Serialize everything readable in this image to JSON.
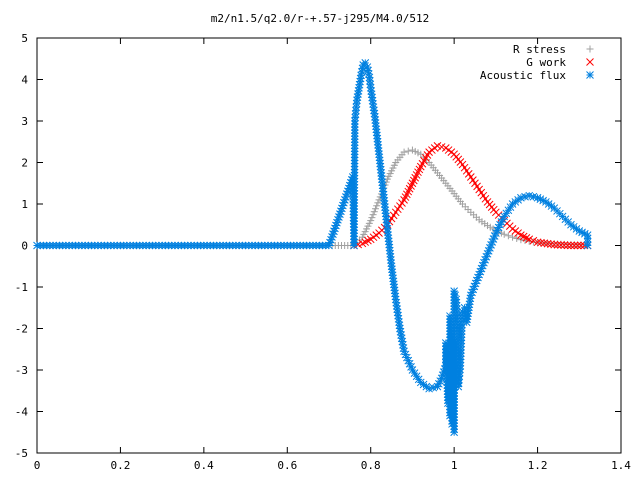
{
  "chart_data": {
    "type": "scatter",
    "title": "m2/n1.5/q2.0/r-+.57-j295/M4.0/512",
    "xlabel": "",
    "ylabel": "",
    "xlim": [
      0,
      1.4
    ],
    "ylim": [
      -5,
      5
    ],
    "xticks": [
      "0",
      "0.2",
      "0.4",
      "0.6",
      "0.8",
      "1",
      "1.2",
      "1.4"
    ],
    "yticks": [
      "-5",
      "-4",
      "-3",
      "-2",
      "-1",
      "0",
      "1",
      "2",
      "3",
      "4",
      "5"
    ],
    "grid": false,
    "legend_position": "top-right",
    "series": [
      {
        "name": "R stress",
        "marker": "plus",
        "color": "#a0a0a0",
        "points": [
          [
            0,
            0
          ],
          [
            0.1,
            0
          ],
          [
            0.2,
            0
          ],
          [
            0.3,
            0
          ],
          [
            0.4,
            0
          ],
          [
            0.5,
            0
          ],
          [
            0.6,
            0
          ],
          [
            0.7,
            0
          ],
          [
            0.76,
            0
          ],
          [
            0.78,
            0.2
          ],
          [
            0.8,
            0.6
          ],
          [
            0.82,
            1.1
          ],
          [
            0.84,
            1.6
          ],
          [
            0.86,
            2.0
          ],
          [
            0.88,
            2.25
          ],
          [
            0.9,
            2.3
          ],
          [
            0.92,
            2.2
          ],
          [
            0.94,
            2.0
          ],
          [
            0.96,
            1.75
          ],
          [
            0.98,
            1.5
          ],
          [
            1.0,
            1.25
          ],
          [
            1.02,
            1.0
          ],
          [
            1.04,
            0.8
          ],
          [
            1.06,
            0.62
          ],
          [
            1.08,
            0.48
          ],
          [
            1.1,
            0.36
          ],
          [
            1.12,
            0.27
          ],
          [
            1.14,
            0.2
          ],
          [
            1.16,
            0.14
          ],
          [
            1.18,
            0.1
          ],
          [
            1.2,
            0.07
          ],
          [
            1.24,
            0.04
          ],
          [
            1.28,
            0.02
          ],
          [
            1.32,
            0.01
          ]
        ]
      },
      {
        "name": "G work",
        "marker": "cross",
        "color": "#ff0000",
        "points": [
          [
            0.76,
            0
          ],
          [
            0.78,
            0.05
          ],
          [
            0.8,
            0.15
          ],
          [
            0.82,
            0.3
          ],
          [
            0.84,
            0.5
          ],
          [
            0.86,
            0.8
          ],
          [
            0.88,
            1.1
          ],
          [
            0.9,
            1.5
          ],
          [
            0.92,
            1.9
          ],
          [
            0.94,
            2.25
          ],
          [
            0.96,
            2.4
          ],
          [
            0.98,
            2.35
          ],
          [
            1.0,
            2.2
          ],
          [
            1.02,
            1.95
          ],
          [
            1.04,
            1.65
          ],
          [
            1.06,
            1.35
          ],
          [
            1.08,
            1.05
          ],
          [
            1.1,
            0.8
          ],
          [
            1.12,
            0.6
          ],
          [
            1.14,
            0.4
          ],
          [
            1.16,
            0.25
          ],
          [
            1.18,
            0.15
          ],
          [
            1.2,
            0.08
          ],
          [
            1.24,
            0.02
          ],
          [
            1.28,
            0
          ],
          [
            1.32,
            0
          ]
        ]
      },
      {
        "name": "Acoustic flux",
        "marker": "star",
        "color": "#0080e0",
        "points": [
          [
            0,
            0
          ],
          [
            0.1,
            0
          ],
          [
            0.2,
            0
          ],
          [
            0.3,
            0
          ],
          [
            0.4,
            0
          ],
          [
            0.5,
            0
          ],
          [
            0.6,
            0
          ],
          [
            0.7,
            0
          ],
          [
            0.76,
            0
          ],
          [
            0.757,
            1.65
          ],
          [
            0.762,
            3.0
          ],
          [
            0.767,
            3.5
          ],
          [
            0.772,
            3.8
          ],
          [
            0.777,
            4.1
          ],
          [
            0.782,
            4.35
          ],
          [
            0.787,
            4.4
          ],
          [
            0.792,
            4.3
          ],
          [
            0.797,
            4.05
          ],
          [
            0.8,
            3.8
          ],
          [
            0.81,
            3.1
          ],
          [
            0.82,
            2.2
          ],
          [
            0.83,
            1.3
          ],
          [
            0.84,
            0.4
          ],
          [
            0.85,
            -0.5
          ],
          [
            0.86,
            -1.3
          ],
          [
            0.87,
            -2.0
          ],
          [
            0.88,
            -2.55
          ],
          [
            0.9,
            -3.0
          ],
          [
            0.92,
            -3.3
          ],
          [
            0.94,
            -3.45
          ],
          [
            0.96,
            -3.4
          ],
          [
            0.97,
            -3.2
          ],
          [
            0.98,
            -2.9
          ],
          [
            0.99,
            -2.6
          ],
          [
            1.0,
            -2.3
          ],
          [
            1.01,
            -2.0
          ],
          [
            1.02,
            -1.6
          ],
          [
            1.04,
            -1.2
          ],
          [
            1.06,
            -0.7
          ],
          [
            1.08,
            -0.2
          ],
          [
            1.1,
            0.3
          ],
          [
            1.12,
            0.7
          ],
          [
            1.14,
            1.0
          ],
          [
            1.16,
            1.15
          ],
          [
            1.18,
            1.2
          ],
          [
            1.2,
            1.15
          ],
          [
            1.22,
            1.05
          ],
          [
            1.24,
            0.9
          ],
          [
            1.26,
            0.7
          ],
          [
            1.28,
            0.5
          ],
          [
            1.3,
            0.35
          ],
          [
            1.32,
            0.25
          ],
          [
            1.32,
            0
          ],
          [
            0.99,
            -4.1
          ],
          [
            0.995,
            -4.3
          ],
          [
            1.0,
            -4.5
          ],
          [
            0.985,
            -3.8
          ],
          [
            1.0,
            -1.1
          ],
          [
            1.005,
            -1.3
          ],
          [
            0.99,
            -1.7
          ],
          [
            1.015,
            -2.9
          ],
          [
            1.01,
            -3.4
          ],
          [
            1.025,
            -1.5
          ],
          [
            1.03,
            -1.85
          ],
          [
            0.98,
            -2.35
          ]
        ]
      }
    ]
  }
}
